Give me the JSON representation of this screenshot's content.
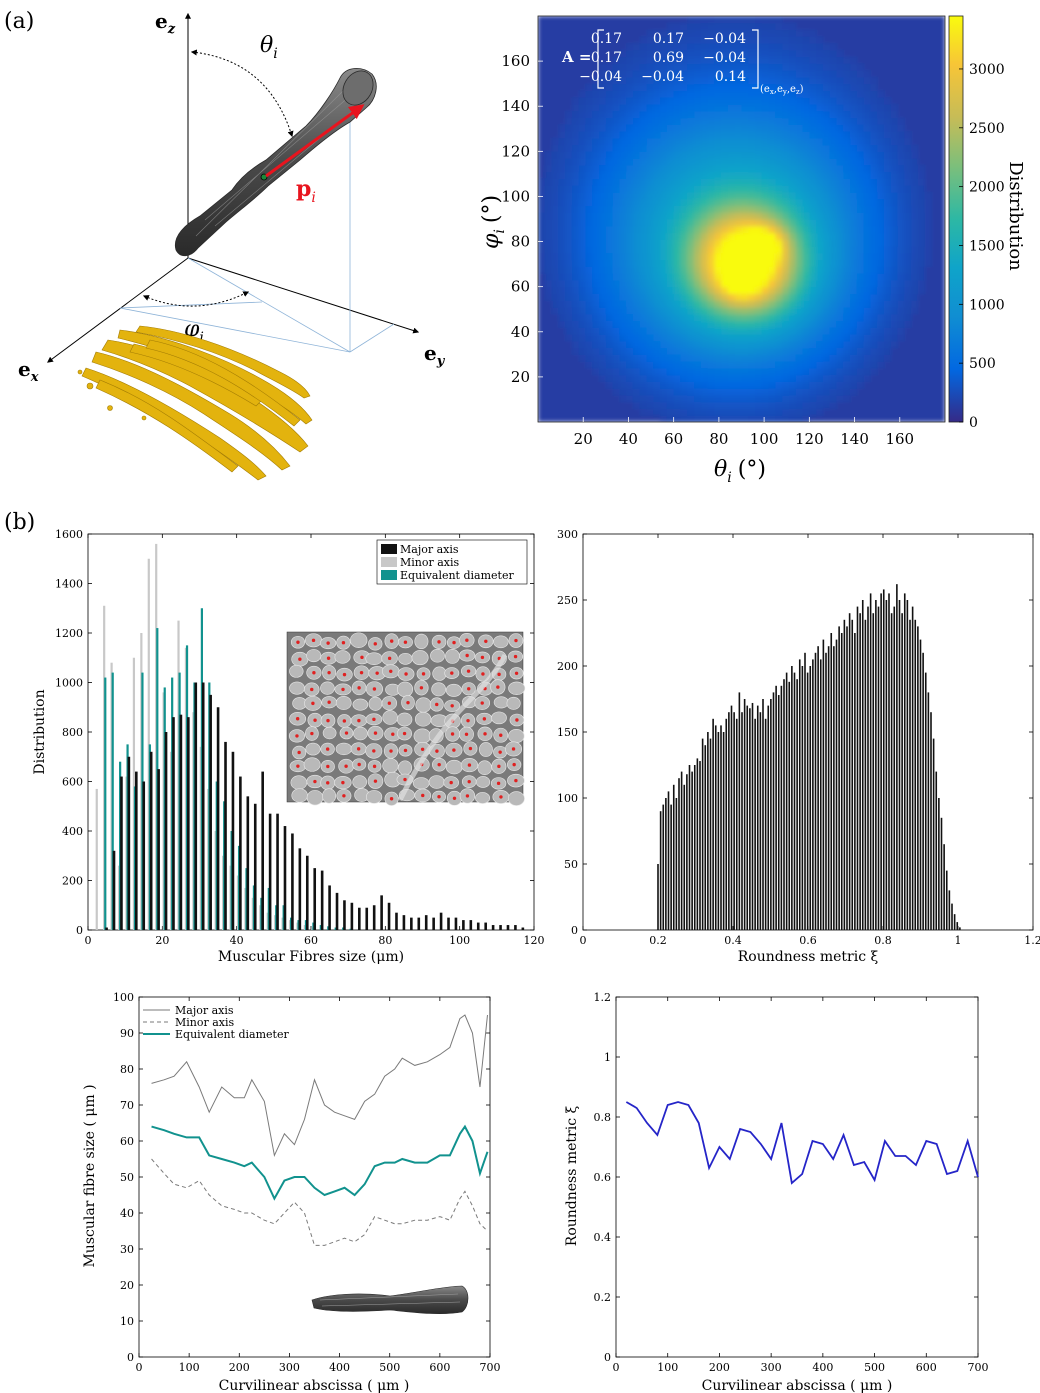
{
  "panel_labels": {
    "a": "(a)",
    "b": "(b)"
  },
  "diagram_a": {
    "axis_x": "e",
    "axis_x_sub": "x",
    "axis_y": "e",
    "axis_y_sub": "y",
    "axis_z": "e",
    "axis_z_sub": "z",
    "theta": "θ",
    "theta_sub": "i",
    "phi": "φ",
    "phi_sub": "i",
    "vector": "p",
    "vector_sub": "i"
  },
  "colors": {
    "teal": "#11928e",
    "black_bar": "#111111",
    "gray_bar": "#c8c8c8",
    "blue_line": "#2525c8",
    "vector_red": "#e8141e",
    "fibre_yellow": "#e3b30e",
    "heatmap_dark": "#1e2a8c"
  },
  "chart_data": [
    {
      "type": "heatmap",
      "xlabel_symbol": "θ",
      "xlabel_sub": "i",
      "xlabel_unit": "(°)",
      "ylabel_symbol": "φ",
      "ylabel_sub": "i",
      "ylabel_unit": "(°)",
      "x_ticks": [
        "20",
        "40",
        "60",
        "80",
        "100",
        "120",
        "140",
        "160"
      ],
      "y_ticks": [
        "20",
        "40",
        "60",
        "80",
        "100",
        "120",
        "140",
        "160"
      ],
      "xlim": [
        0,
        180
      ],
      "ylim": [
        0,
        180
      ],
      "colorbar_label": "Distribution",
      "colorbar_ticks": [
        "0",
        "500",
        "1000",
        "1500",
        "2000",
        "2500",
        "3000"
      ],
      "colorbar_range": [
        0,
        3450
      ],
      "peaks": [
        {
          "x": 92,
          "y": 70,
          "value": 2400,
          "sx": 16,
          "sy": 16
        },
        {
          "x": 100,
          "y": 79,
          "value": 900,
          "sx": 6,
          "sy": 5
        },
        {
          "x": 90,
          "y": 63,
          "value": 700,
          "sx": 5,
          "sy": 5
        },
        {
          "x": 88,
          "y": 78,
          "value": 1300,
          "sx": 34,
          "sy": 34
        },
        {
          "x": 85,
          "y": 95,
          "value": 450,
          "sx": 55,
          "sy": 60
        }
      ],
      "matrix_label": "A =",
      "matrix": [
        [
          "0.17",
          "0.17",
          "−0.04"
        ],
        [
          "0.17",
          "0.69",
          "−0.04"
        ],
        [
          "−0.04",
          "−0.04",
          "0.14"
        ]
      ],
      "matrix_subscript": "(e",
      "matrix_subscript_items": [
        "x",
        "y",
        "z"
      ]
    },
    {
      "type": "bar",
      "xlabel": "Muscular Fibres size (μm)",
      "ylabel": "Distribution",
      "xlim": [
        0,
        120
      ],
      "ylim": [
        0,
        1600
      ],
      "x_ticks": [
        "0",
        "20",
        "40",
        "60",
        "80",
        "100",
        "120"
      ],
      "y_ticks": [
        "0",
        "200",
        "400",
        "600",
        "800",
        "1000",
        "1200",
        "1400",
        "1600"
      ],
      "legend": [
        "Major axis",
        "Minor axis",
        "Equivalent diameter"
      ],
      "series": [
        {
          "name": "Major axis",
          "x": [
            5,
            7,
            9,
            11,
            13,
            15,
            17,
            19,
            21,
            23,
            25,
            27,
            29,
            31,
            33,
            35,
            37,
            39,
            41,
            43,
            45,
            47,
            49,
            51,
            53,
            55,
            57,
            59,
            61,
            63,
            65,
            67,
            69,
            71,
            73,
            75,
            77,
            79,
            81,
            83,
            85,
            87,
            89,
            91,
            93,
            95,
            97,
            99,
            101,
            103,
            105,
            107,
            109,
            111,
            113,
            115,
            117
          ],
          "values": [
            10,
            320,
            620,
            700,
            640,
            600,
            720,
            650,
            800,
            860,
            870,
            860,
            1000,
            1000,
            950,
            900,
            760,
            720,
            620,
            540,
            510,
            640,
            470,
            470,
            420,
            390,
            330,
            300,
            250,
            240,
            180,
            150,
            120,
            110,
            90,
            90,
            100,
            140,
            110,
            70,
            60,
            50,
            50,
            60,
            50,
            70,
            50,
            50,
            40,
            40,
            30,
            30,
            20,
            20,
            20,
            20,
            10
          ]
        },
        {
          "name": "Minor axis",
          "x": [
            3,
            5,
            7,
            9,
            11,
            13,
            15,
            17,
            19,
            21,
            23,
            25,
            27,
            29,
            31,
            33,
            35,
            37,
            39,
            41,
            43,
            45,
            47,
            49,
            51,
            53,
            55,
            57,
            59,
            61
          ],
          "values": [
            570,
            1310,
            1080,
            260,
            620,
            1100,
            1200,
            1500,
            1560,
            960,
            720,
            1250,
            1140,
            880,
            740,
            570,
            400,
            300,
            260,
            220,
            170,
            130,
            100,
            70,
            60,
            50,
            40,
            30,
            20,
            10
          ]
        },
        {
          "name": "Equivalent diameter",
          "x": [
            4,
            6,
            8,
            10,
            12,
            14,
            16,
            18,
            20,
            22,
            24,
            26,
            28,
            30,
            32,
            34,
            36,
            38,
            40,
            42,
            44,
            46,
            48,
            50,
            52,
            54,
            56,
            58,
            60,
            62,
            64,
            66,
            68,
            70
          ],
          "values": [
            1020,
            1040,
            680,
            750,
            580,
            1040,
            750,
            1220,
            980,
            1020,
            1040,
            1150,
            1000,
            1300,
            1000,
            600,
            520,
            400,
            340,
            250,
            180,
            130,
            170,
            100,
            100,
            50,
            40,
            40,
            30,
            20,
            15,
            10,
            10,
            5
          ]
        }
      ],
      "inset": true
    },
    {
      "type": "bar",
      "xlabel": "Roundness metric ξ",
      "ylabel": "",
      "xlim": [
        0,
        1.2
      ],
      "ylim": [
        0,
        300
      ],
      "x_ticks": [
        "0",
        "0.2",
        "0.4",
        "0.6",
        "0.8",
        "1",
        "1.2"
      ],
      "y_ticks": [
        "0",
        "50",
        "100",
        "150",
        "200",
        "250",
        "300"
      ],
      "step": 0.005,
      "x_start": 0.2,
      "values": [
        50,
        90,
        95,
        100,
        105,
        95,
        110,
        100,
        115,
        120,
        110,
        118,
        125,
        120,
        125,
        130,
        128,
        145,
        140,
        150,
        145,
        160,
        155,
        150,
        155,
        150,
        160,
        165,
        170,
        165,
        160,
        180,
        165,
        175,
        170,
        168,
        172,
        160,
        170,
        165,
        175,
        160,
        170,
        175,
        180,
        185,
        178,
        185,
        190,
        195,
        188,
        200,
        195,
        190,
        205,
        200,
        210,
        195,
        200,
        205,
        210,
        215,
        205,
        220,
        210,
        215,
        225,
        215,
        220,
        230,
        225,
        235,
        230,
        240,
        235,
        225,
        245,
        240,
        250,
        235,
        245,
        255,
        240,
        250,
        245,
        255,
        258,
        250,
        255,
        240,
        245,
        262,
        250,
        240,
        255,
        250,
        235,
        245,
        235,
        230,
        220,
        210,
        195,
        180,
        165,
        145,
        120,
        100,
        85,
        65,
        45,
        30,
        20,
        12,
        6,
        2
      ]
    },
    {
      "type": "line",
      "xlabel": "Curvilinear abscissa ( μm )",
      "ylabel": "Muscular fibre size ( μm )",
      "xlim": [
        0,
        700
      ],
      "ylim": [
        0,
        100
      ],
      "x_ticks": [
        "0",
        "100",
        "200",
        "300",
        "400",
        "500",
        "600",
        "700"
      ],
      "y_ticks": [
        "0",
        "10",
        "20",
        "30",
        "40",
        "50",
        "60",
        "70",
        "80",
        "90",
        "100"
      ],
      "legend": [
        "Major axis",
        "Minor axis",
        "Equivalent diameter"
      ],
      "x": [
        25,
        50,
        70,
        95,
        120,
        140,
        165,
        190,
        210,
        225,
        250,
        270,
        290,
        310,
        330,
        350,
        370,
        390,
        410,
        430,
        450,
        470,
        490,
        510,
        525,
        550,
        575,
        600,
        620,
        640,
        650,
        665,
        680,
        695
      ],
      "series": [
        {
          "name": "Major axis",
          "values": [
            76,
            77,
            78,
            82,
            75,
            68,
            75,
            72,
            72,
            77,
            71,
            56,
            62,
            59,
            66,
            77,
            70,
            68,
            67,
            66,
            71,
            73,
            78,
            80,
            83,
            81,
            82,
            84,
            86,
            94,
            95,
            90,
            75,
            95
          ]
        },
        {
          "name": "Minor axis",
          "values": [
            55,
            51,
            48,
            47,
            49,
            45,
            42,
            41,
            40,
            40,
            38,
            37,
            40,
            43,
            40,
            31,
            31,
            32,
            33,
            32,
            34,
            39,
            38,
            37,
            37,
            38,
            38,
            39,
            38,
            44,
            46,
            42,
            37,
            35
          ]
        },
        {
          "name": "Equivalent diameter",
          "values": [
            64,
            63,
            62,
            61,
            61,
            56,
            55,
            54,
            53,
            54,
            50,
            44,
            49,
            50,
            50,
            47,
            45,
            46,
            47,
            45,
            48,
            53,
            54,
            54,
            55,
            54,
            54,
            56,
            56,
            62,
            64,
            60,
            51,
            57
          ]
        }
      ],
      "inset": true
    },
    {
      "type": "line",
      "xlabel": "Curvilinear abscissa ( μm )",
      "ylabel": "Roundness metric ξ",
      "xlim": [
        0,
        700
      ],
      "ylim": [
        0,
        1.2
      ],
      "x_ticks": [
        "0",
        "100",
        "200",
        "300",
        "400",
        "500",
        "600",
        "700"
      ],
      "y_ticks": [
        "0",
        "0.2",
        "0.4",
        "0.6",
        "0.8",
        "1",
        "1.2"
      ],
      "x": [
        20,
        40,
        60,
        80,
        100,
        120,
        140,
        160,
        180,
        200,
        220,
        240,
        260,
        280,
        300,
        320,
        340,
        360,
        380,
        400,
        420,
        440,
        460,
        480,
        500,
        520,
        540,
        560,
        580,
        600,
        620,
        640,
        660,
        680,
        700
      ],
      "values": [
        0.85,
        0.83,
        0.78,
        0.74,
        0.84,
        0.85,
        0.84,
        0.78,
        0.63,
        0.7,
        0.66,
        0.76,
        0.75,
        0.71,
        0.66,
        0.78,
        0.58,
        0.61,
        0.72,
        0.71,
        0.66,
        0.74,
        0.64,
        0.65,
        0.59,
        0.72,
        0.67,
        0.67,
        0.64,
        0.72,
        0.71,
        0.61,
        0.62,
        0.72,
        0.6
      ]
    }
  ]
}
